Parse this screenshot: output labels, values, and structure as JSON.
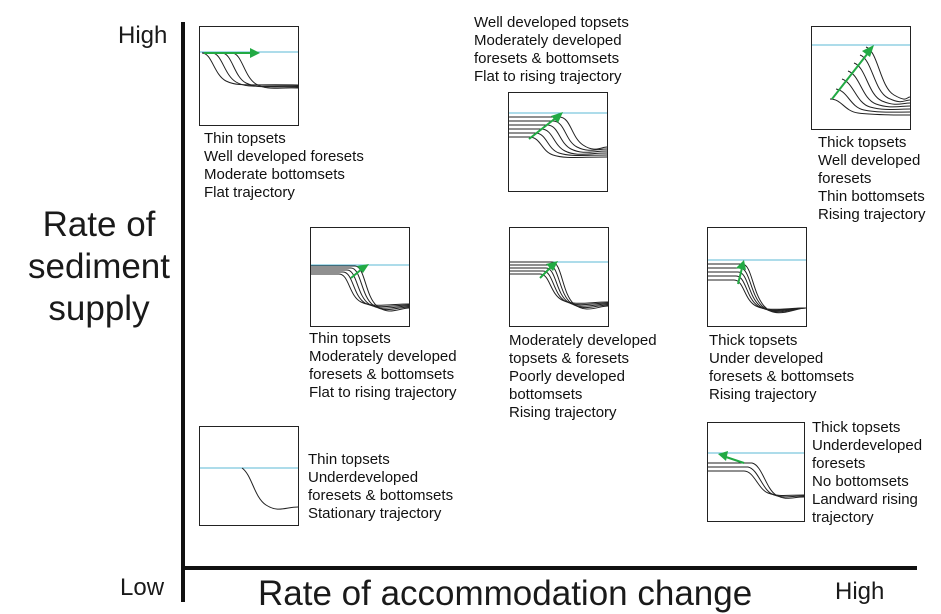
{
  "fragment": "",
  "axes": {
    "y_high": "High",
    "y_low": "Low",
    "x_high": "High",
    "y_title": [
      "Rate of",
      "sediment",
      "supply"
    ],
    "x_title": "Rate of accommodation change"
  },
  "colors": {
    "sea_level": "#5bb8d6",
    "trajectory": "#22aa44",
    "lines": "#222222"
  },
  "panels": [
    {
      "id": "p1",
      "lines": [
        "Thin topsets",
        "Well developed foresets",
        "Moderate bottomsets",
        "Flat trajectory"
      ]
    },
    {
      "id": "p2",
      "lines": [
        "Well developed topsets",
        "Moderately developed",
        "foresets & bottomsets",
        "Flat to rising trajectory"
      ]
    },
    {
      "id": "p3",
      "lines": [
        "Thick topsets",
        "Well developed",
        "foresets",
        "Thin bottomsets",
        "Rising trajectory"
      ]
    },
    {
      "id": "p4",
      "lines": [
        "Thin topsets",
        "Moderately developed",
        "foresets & bottomsets",
        "Flat to rising trajectory"
      ]
    },
    {
      "id": "p5",
      "lines": [
        "Moderately developed",
        "topsets & foresets",
        "Poorly developed",
        "bottomsets",
        "Rising trajectory"
      ]
    },
    {
      "id": "p6",
      "lines": [
        "Thick topsets",
        "Under developed",
        "foresets & bottomsets",
        "Rising trajectory"
      ]
    },
    {
      "id": "p7",
      "lines": [
        "Thin topsets",
        "Underdeveloped",
        "foresets & bottomsets",
        "Stationary trajectory"
      ]
    },
    {
      "id": "p8",
      "lines": [
        "Thick topsets",
        "Underdeveloped",
        "foresets",
        "No bottomsets",
        "Landward rising",
        "trajectory"
      ]
    }
  ]
}
